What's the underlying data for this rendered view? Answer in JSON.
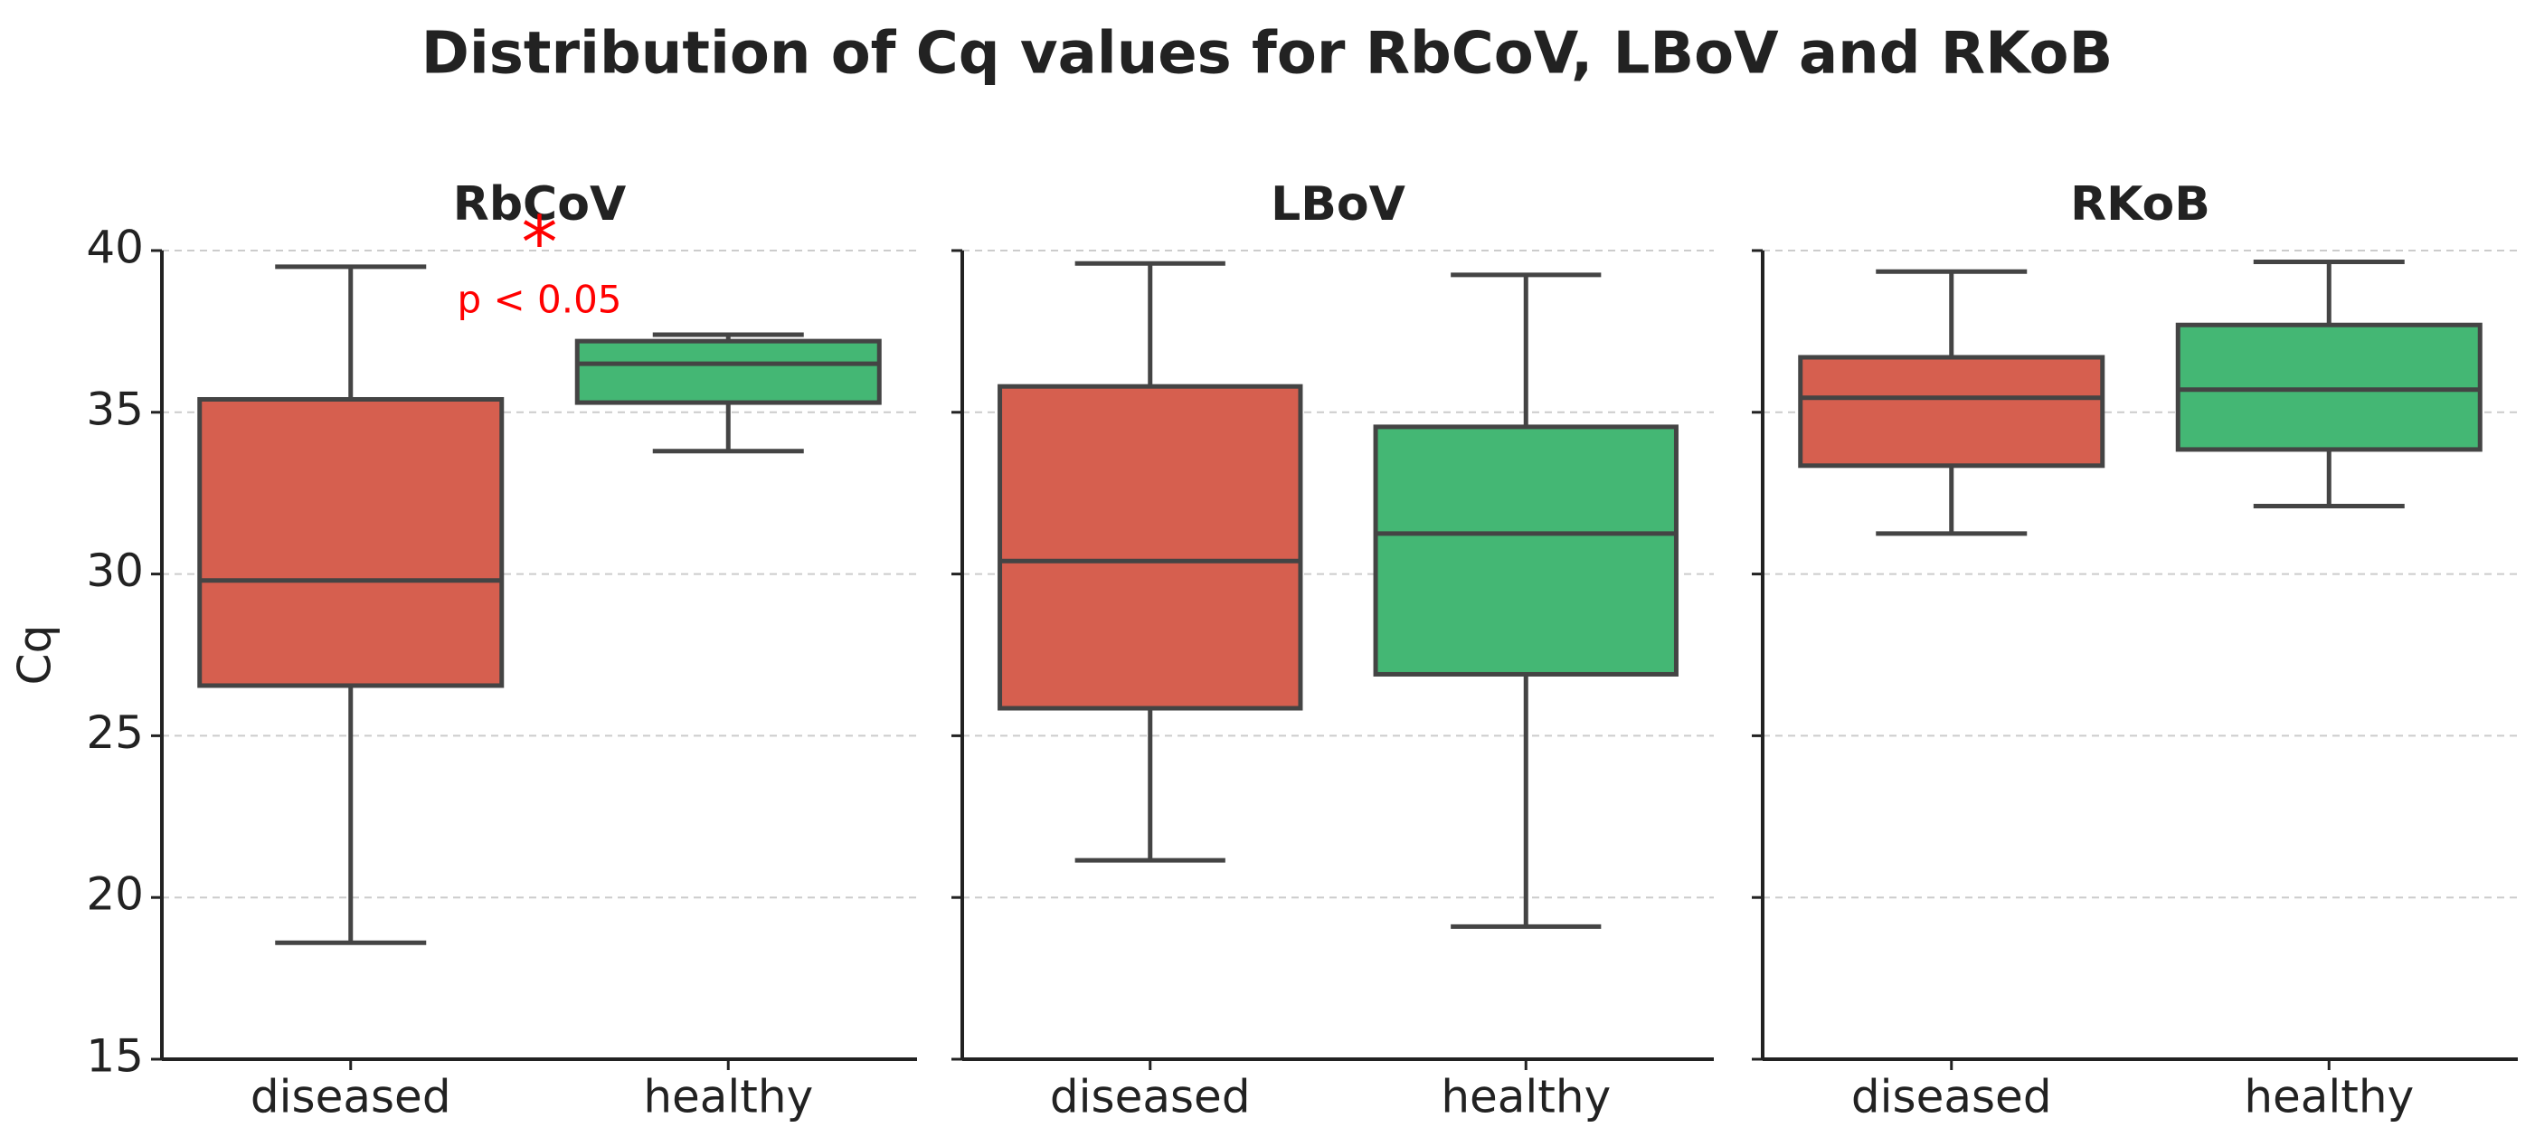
{
  "chart_data": {
    "type": "box",
    "title": "Distribution of Cq values for RbCoV, LBoV and RKoB",
    "ylabel": "Cq",
    "ylim": [
      15,
      40
    ],
    "yticks": [
      15,
      20,
      25,
      30,
      35,
      40
    ],
    "grid": true,
    "categories": [
      "diseased",
      "healthy"
    ],
    "colors": [
      "#d65f4f",
      "#44b774"
    ],
    "panels": [
      {
        "title": "RbCoV",
        "boxes": [
          {
            "whisker_low": 18.6,
            "q1": 26.55,
            "median": 29.8,
            "q3": 35.4,
            "whisker_high": 39.5
          },
          {
            "whisker_low": 33.8,
            "q1": 35.3,
            "median": 36.5,
            "q3": 37.2,
            "whisker_high": 37.4
          }
        ],
        "annotation": {
          "marker": "*",
          "text": "p < 0.05"
        }
      },
      {
        "title": "LBoV",
        "boxes": [
          {
            "whisker_low": 21.15,
            "q1": 25.85,
            "median": 30.4,
            "q3": 35.8,
            "whisker_high": 39.6
          },
          {
            "whisker_low": 19.1,
            "q1": 26.9,
            "median": 31.25,
            "q3": 34.55,
            "whisker_high": 39.25
          }
        ]
      },
      {
        "title": "RKoB",
        "boxes": [
          {
            "whisker_low": 31.25,
            "q1": 33.35,
            "median": 35.45,
            "q3": 36.7,
            "whisker_high": 39.35
          },
          {
            "whisker_low": 32.1,
            "q1": 33.85,
            "median": 35.7,
            "q3": 37.7,
            "whisker_high": 39.65
          }
        ]
      }
    ]
  }
}
